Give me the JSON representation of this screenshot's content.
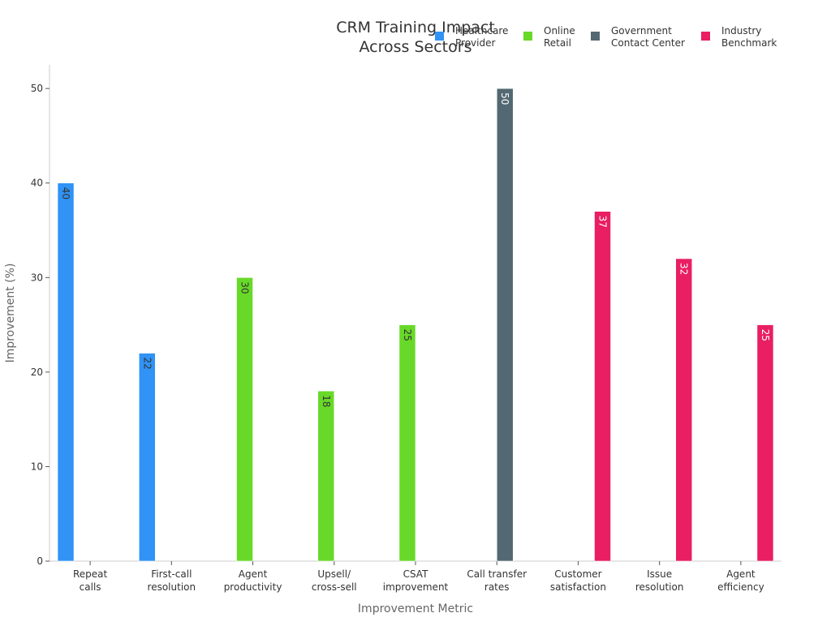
{
  "chart_data": {
    "type": "bar",
    "title": [
      "CRM Training Impact",
      "Across Sectors"
    ],
    "xlabel": "Improvement Metric",
    "ylabel": "Improvement (%)",
    "ylim": [
      0,
      52.5
    ],
    "yticks": [
      0,
      10,
      20,
      30,
      40,
      50
    ],
    "categories": [
      [
        "Repeat",
        "calls"
      ],
      [
        "First-call",
        "resolution"
      ],
      [
        "Agent",
        "productivity"
      ],
      [
        "Upsell/",
        "cross-sell"
      ],
      [
        "CSAT",
        "improvement"
      ],
      [
        "Call transfer",
        "rates"
      ],
      [
        "Customer",
        "satisfaction"
      ],
      [
        "Issue",
        "resolution"
      ],
      [
        "Agent",
        "efficiency"
      ]
    ],
    "legend_position": "top-right",
    "series": [
      {
        "name": [
          "Healthcare",
          "Provider"
        ],
        "color": "#3093f5",
        "label_color": "#333333",
        "values": [
          40,
          22,
          null,
          null,
          null,
          null,
          null,
          null,
          null
        ]
      },
      {
        "name": [
          "Online",
          "Retail"
        ],
        "color": "#68d928",
        "label_color": "#333333",
        "values": [
          null,
          null,
          30,
          18,
          25,
          null,
          null,
          null,
          null
        ]
      },
      {
        "name": [
          "Government",
          "Contact Center"
        ],
        "color": "#536872",
        "label_color": "#ffffff",
        "values": [
          null,
          null,
          null,
          null,
          null,
          50,
          null,
          null,
          null
        ]
      },
      {
        "name": [
          "Industry",
          "Benchmark"
        ],
        "color": "#e91e63",
        "label_color": "#ffffff",
        "values": [
          null,
          null,
          null,
          null,
          null,
          null,
          37,
          32,
          25
        ]
      }
    ]
  }
}
